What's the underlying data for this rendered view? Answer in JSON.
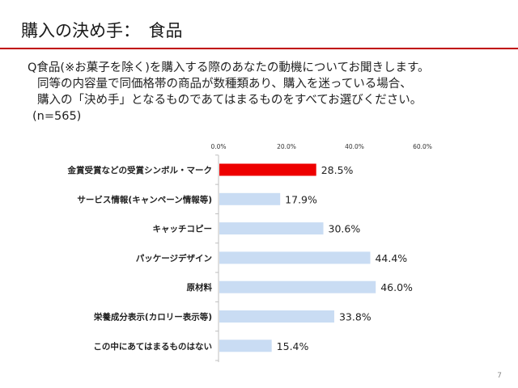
{
  "header": {
    "title": "購入の決め手：　食品"
  },
  "question": {
    "line1": "Q食品(※お菓子を除く)を購入する際のあなたの動機についてお聞きします。",
    "line2": "同等の内容量で同価格帯の商品が数種類あり、購入を迷っている場合、",
    "line3": "購入の「決め手」となるものであてはまるものをすべてお選びください。",
    "line4": "(n=565)"
  },
  "colors": {
    "highlight": "#ee0000",
    "bar": "#c9dcf3",
    "accent": "#c00000"
  },
  "chart_data": {
    "type": "bar",
    "orientation": "horizontal",
    "xlim": [
      0,
      60
    ],
    "tick_labels": [
      "0.0%",
      "20.0%",
      "40.0%",
      "60.0%"
    ],
    "tick_values": [
      0,
      20,
      40,
      60
    ],
    "categories": [
      "金賞受賞などの受賞シンボル・マーク",
      "サービス情報(キャンペーン情報等)",
      "キャッチコピー",
      "パッケージデザイン",
      "原材料",
      "栄養成分表示(カロリー表示等)",
      "この中にあてはまるものはない"
    ],
    "values": [
      28.5,
      17.9,
      30.6,
      44.4,
      46.0,
      33.8,
      15.4
    ],
    "value_labels": [
      "28.5%",
      "17.9%",
      "30.6%",
      "44.4%",
      "46.0%",
      "33.8%",
      "15.4%"
    ],
    "highlighted_index": 0,
    "grid": false
  },
  "footer": {
    "page_number": "7"
  }
}
